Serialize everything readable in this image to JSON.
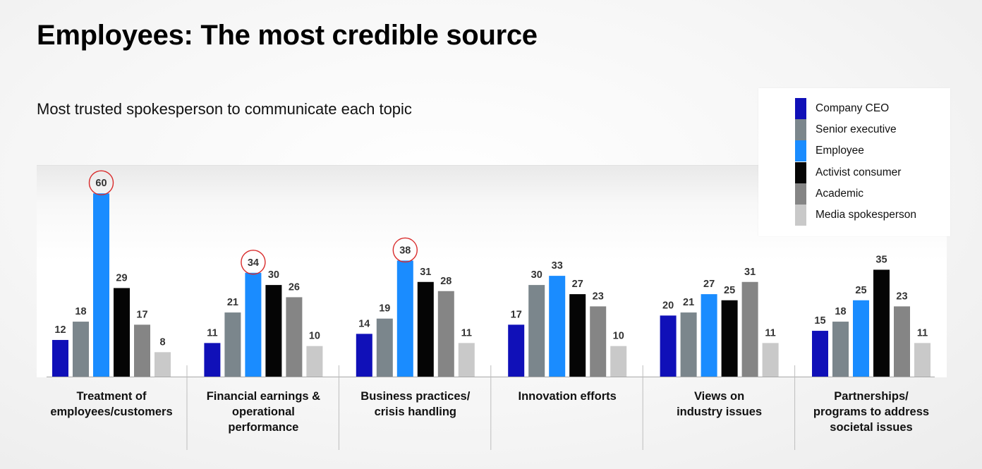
{
  "title": "Employees: The most credible source",
  "subtitle": "Most trusted spokesperson to communicate each topic",
  "chart_data": {
    "type": "bar",
    "categories": [
      [
        "Treatment of",
        "employees/customers"
      ],
      [
        "Financial earnings &",
        "operational",
        "performance"
      ],
      [
        "Business practices/",
        "crisis handling"
      ],
      [
        "Innovation efforts"
      ],
      [
        "Views on",
        "industry issues"
      ],
      [
        "Partnerships/",
        "programs to address",
        "societal issues"
      ]
    ],
    "series": [
      {
        "name": "Company CEO",
        "color": "#1010b8",
        "values": [
          12,
          11,
          14,
          17,
          20,
          15
        ]
      },
      {
        "name": "Senior executive",
        "color": "#7b868c",
        "values": [
          18,
          21,
          19,
          30,
          21,
          18
        ]
      },
      {
        "name": "Employee",
        "color": "#1a8cff",
        "values": [
          60,
          34,
          38,
          33,
          27,
          25
        ]
      },
      {
        "name": "Activist consumer",
        "color": "#050505",
        "values": [
          29,
          30,
          31,
          27,
          25,
          35
        ]
      },
      {
        "name": "Academic",
        "color": "#858585",
        "values": [
          17,
          26,
          28,
          23,
          31,
          23
        ]
      },
      {
        "name": "Media spokesperson",
        "color": "#c9c9c9",
        "values": [
          8,
          10,
          11,
          10,
          11,
          11
        ]
      }
    ],
    "highlighted": [
      {
        "category_index": 0,
        "series": "Employee"
      },
      {
        "category_index": 1,
        "series": "Employee"
      },
      {
        "category_index": 2,
        "series": "Employee"
      }
    ],
    "highlight_color": "#d92b2b",
    "ylim": [
      0,
      60
    ],
    "grid": false,
    "legend_position": "top-right"
  }
}
